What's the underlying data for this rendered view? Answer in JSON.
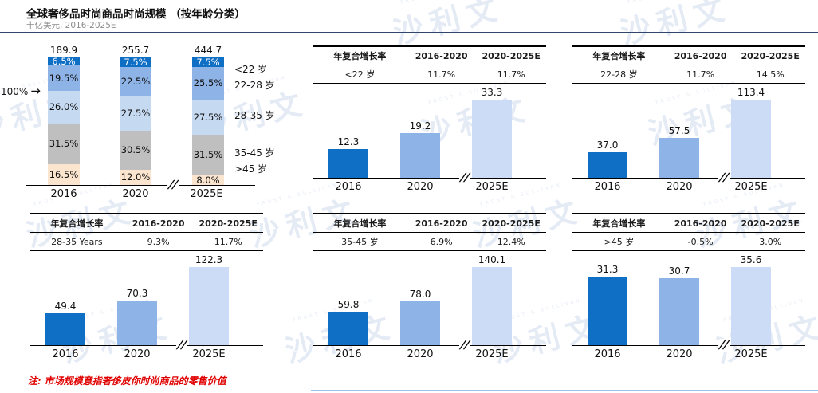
{
  "header": {
    "title": "全球奢侈品时尚商品时尚规模 （按年龄分类）",
    "subtitle": "十亿美元, 2016-2025E"
  },
  "footnote": {
    "text": "注: 市场规模意指奢侈皮你时尚商品的零售价值"
  },
  "watermark": {
    "text": "沙利文",
    "subtext": "FROST & SULLIVAN"
  },
  "icons": {
    "right_arrow": "→"
  },
  "axis": {
    "break_symbol": "//"
  },
  "colors": {
    "age_under22": "#0f6fc5",
    "age_22_28": "#8eb3e6",
    "age_28_35": "#c5d9f1",
    "age_35_45": "#bfbfbf",
    "age_over45": "#fbe5cf",
    "bar_2016": "#0f6fc5",
    "bar_2020": "#8eb3e6",
    "bar_2025": "#ccdcf6",
    "header_rule": "#31456b",
    "note_red": "#e00000"
  },
  "chart_data": [
    {
      "type": "bar",
      "variant": "stacked-100pct",
      "title": "全球奢侈品时尚商品时尚规模 （按年龄分类）",
      "unit": "十亿美元",
      "axis_label": "100%",
      "categories": [
        "2016",
        "2020",
        "2025E"
      ],
      "totals": [
        189.9,
        255.7,
        444.7
      ],
      "total_labels": [
        "189.9",
        "255.7",
        "444.7"
      ],
      "series": [
        {
          "name": "<22 岁",
          "color": "#0f6fc5",
          "values_pct": [
            6.5,
            7.5,
            7.5
          ],
          "labels": [
            "6.5%",
            "7.5%",
            "7.5%"
          ]
        },
        {
          "name": "22-28 岁",
          "color": "#8eb3e6",
          "values_pct": [
            19.5,
            22.5,
            25.5
          ],
          "labels": [
            "19.5%",
            "22.5%",
            "25.5%"
          ]
        },
        {
          "name": "28-35 岁",
          "color": "#c5d9f1",
          "values_pct": [
            26.0,
            27.5,
            27.5
          ],
          "labels": [
            "26.0%",
            "27.5%",
            "27.5%"
          ]
        },
        {
          "name": "35-45 岁",
          "color": "#bfbfbf",
          "values_pct": [
            31.5,
            30.5,
            31.5
          ],
          "labels": [
            "31.5%",
            "30.5%",
            "31.5%"
          ]
        },
        {
          "name": ">45 岁",
          "color": "#fbe5cf",
          "values_pct": [
            16.5,
            12.0,
            8.0
          ],
          "labels": [
            "16.5%",
            "12.0%",
            "8.0%"
          ]
        }
      ]
    },
    {
      "type": "bar",
      "group": "<22 岁",
      "table": {
        "headers": [
          "年复合增长率",
          "2016-2020",
          "2020-2025E"
        ],
        "row": [
          "<22 岁",
          "11.7%",
          "11.7%"
        ]
      },
      "categories": [
        "2016",
        "2020",
        "2025E"
      ],
      "values": [
        12.3,
        19.2,
        33.3
      ],
      "labels": [
        "12.3",
        "19.2",
        "33.3"
      ]
    },
    {
      "type": "bar",
      "group": "22-28 岁",
      "table": {
        "headers": [
          "年复合增长率",
          "2016-2020",
          "2020-2025E"
        ],
        "row": [
          "22-28 岁",
          "11.7%",
          "14.5%"
        ]
      },
      "categories": [
        "2016",
        "2020",
        "2025E"
      ],
      "values": [
        37.0,
        57.5,
        113.4
      ],
      "labels": [
        "37.0",
        "57.5",
        "113.4"
      ]
    },
    {
      "type": "bar",
      "group": "28-35 Years",
      "table": {
        "headers": [
          "年复合增长率",
          "2016-2020",
          "2020-2025E"
        ],
        "row": [
          "28-35 Years",
          "9.3%",
          "11.7%"
        ]
      },
      "categories": [
        "2016",
        "2020",
        "2025E"
      ],
      "values": [
        49.4,
        70.3,
        122.3
      ],
      "labels": [
        "49.4",
        "70.3",
        "122.3"
      ]
    },
    {
      "type": "bar",
      "group": "35-45 岁",
      "table": {
        "headers": [
          "年复合增长率",
          "2016-2020",
          "2020-2025E"
        ],
        "row": [
          "35-45 岁",
          "6.9%",
          "12.4%"
        ]
      },
      "categories": [
        "2016",
        "2020",
        "2025E"
      ],
      "values": [
        59.8,
        78.0,
        140.1
      ],
      "labels": [
        "59.8",
        "78.0",
        "140.1"
      ]
    },
    {
      "type": "bar",
      "group": ">45 岁",
      "table": {
        "headers": [
          "年复合增长率",
          "2016-2020",
          "2020-2025E"
        ],
        "row": [
          ">45 岁",
          "-0.5%",
          "3.0%"
        ]
      },
      "categories": [
        "2016",
        "2020",
        "2025E"
      ],
      "values": [
        31.3,
        30.7,
        35.6
      ],
      "labels": [
        "31.3",
        "30.7",
        "35.6"
      ]
    }
  ]
}
